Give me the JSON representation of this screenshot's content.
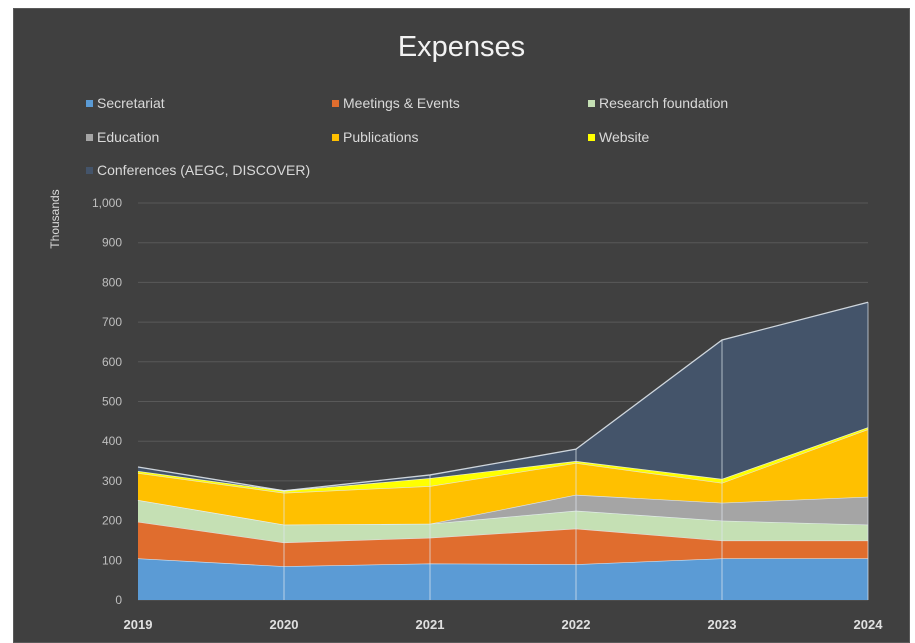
{
  "chart_data": {
    "type": "area",
    "stacked": true,
    "title": "Expenses",
    "ylabel": "Thousands",
    "xlabel": "",
    "categories": [
      "2019",
      "2020",
      "2021",
      "2022",
      "2023",
      "2024"
    ],
    "ylim": [
      0,
      1000
    ],
    "yticks": [
      "0",
      "100",
      "200",
      "300",
      "400",
      "500",
      "600",
      "700",
      "800",
      "900",
      "1,000"
    ],
    "grid": true,
    "legend_position": "top",
    "series": [
      {
        "name": "Secretariat",
        "color": "#5b9bd5",
        "values": [
          105,
          85,
          92,
          90,
          105,
          105
        ]
      },
      {
        "name": "Meetings & Events",
        "color": "#e06d2e",
        "values": [
          92,
          60,
          65,
          90,
          45,
          45
        ]
      },
      {
        "name": "Research foundation",
        "color": "#c5e0b4",
        "values": [
          55,
          45,
          35,
          45,
          50,
          40
        ]
      },
      {
        "name": "Education",
        "color": "#a5a5a5",
        "values": [
          0,
          0,
          0,
          40,
          45,
          70
        ]
      },
      {
        "name": "Publications",
        "color": "#ffc000",
        "values": [
          68,
          80,
          95,
          80,
          50,
          170
        ]
      },
      {
        "name": "Website",
        "color": "#ffff00",
        "values": [
          5,
          5,
          20,
          5,
          10,
          5
        ]
      },
      {
        "name": "Conferences (AEGC, DISCOVER)",
        "color": "#44546a",
        "values": [
          10,
          0,
          8,
          30,
          350,
          315
        ]
      }
    ]
  }
}
